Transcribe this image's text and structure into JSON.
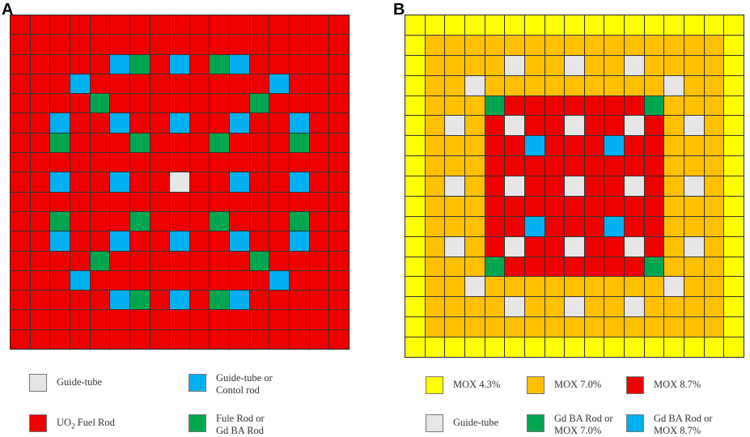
{
  "colors": {
    "red": "#ee0000",
    "blue": "#00b0f0",
    "green": "#00a550",
    "white": "#e6e6e6",
    "yellow": "#ffff00",
    "orange": "#ffc000"
  },
  "panels": [
    {
      "label": "A",
      "size": 17,
      "fill": "red",
      "cells": [
        {
          "r": 2,
          "c": 5,
          "t": "blue"
        },
        {
          "r": 2,
          "c": 6,
          "t": "green"
        },
        {
          "r": 2,
          "c": 8,
          "t": "blue"
        },
        {
          "r": 2,
          "c": 10,
          "t": "green"
        },
        {
          "r": 2,
          "c": 11,
          "t": "blue"
        },
        {
          "r": 3,
          "c": 3,
          "t": "blue"
        },
        {
          "r": 3,
          "c": 13,
          "t": "blue"
        },
        {
          "r": 4,
          "c": 4,
          "t": "green"
        },
        {
          "r": 4,
          "c": 12,
          "t": "green"
        },
        {
          "r": 5,
          "c": 2,
          "t": "blue"
        },
        {
          "r": 5,
          "c": 5,
          "t": "blue"
        },
        {
          "r": 5,
          "c": 8,
          "t": "blue"
        },
        {
          "r": 5,
          "c": 11,
          "t": "blue"
        },
        {
          "r": 5,
          "c": 14,
          "t": "blue"
        },
        {
          "r": 6,
          "c": 2,
          "t": "green"
        },
        {
          "r": 6,
          "c": 6,
          "t": "green"
        },
        {
          "r": 6,
          "c": 10,
          "t": "green"
        },
        {
          "r": 6,
          "c": 14,
          "t": "green"
        },
        {
          "r": 8,
          "c": 2,
          "t": "blue"
        },
        {
          "r": 8,
          "c": 5,
          "t": "blue"
        },
        {
          "r": 8,
          "c": 8,
          "t": "white"
        },
        {
          "r": 8,
          "c": 11,
          "t": "blue"
        },
        {
          "r": 8,
          "c": 14,
          "t": "blue"
        },
        {
          "r": 10,
          "c": 2,
          "t": "green"
        },
        {
          "r": 10,
          "c": 6,
          "t": "green"
        },
        {
          "r": 10,
          "c": 10,
          "t": "green"
        },
        {
          "r": 10,
          "c": 14,
          "t": "green"
        },
        {
          "r": 11,
          "c": 2,
          "t": "blue"
        },
        {
          "r": 11,
          "c": 5,
          "t": "blue"
        },
        {
          "r": 11,
          "c": 8,
          "t": "blue"
        },
        {
          "r": 11,
          "c": 11,
          "t": "blue"
        },
        {
          "r": 11,
          "c": 14,
          "t": "blue"
        },
        {
          "r": 12,
          "c": 4,
          "t": "green"
        },
        {
          "r": 12,
          "c": 12,
          "t": "green"
        },
        {
          "r": 13,
          "c": 3,
          "t": "blue"
        },
        {
          "r": 13,
          "c": 13,
          "t": "blue"
        },
        {
          "r": 14,
          "c": 5,
          "t": "blue"
        },
        {
          "r": 14,
          "c": 6,
          "t": "green"
        },
        {
          "r": 14,
          "c": 8,
          "t": "blue"
        },
        {
          "r": 14,
          "c": 10,
          "t": "green"
        },
        {
          "r": 14,
          "c": 11,
          "t": "blue"
        }
      ]
    },
    {
      "label": "B",
      "size": 17,
      "zones": [
        {
          "from": 0,
          "to": 16,
          "t": "yellow"
        },
        {
          "from": 1,
          "to": 15,
          "t": "orange"
        },
        {
          "from": 4,
          "to": 12,
          "t": "red"
        }
      ],
      "cells": [
        {
          "r": 2,
          "c": 5,
          "t": "white"
        },
        {
          "r": 2,
          "c": 8,
          "t": "white"
        },
        {
          "r": 2,
          "c": 11,
          "t": "white"
        },
        {
          "r": 3,
          "c": 3,
          "t": "white"
        },
        {
          "r": 3,
          "c": 13,
          "t": "white"
        },
        {
          "r": 4,
          "c": 4,
          "t": "green"
        },
        {
          "r": 4,
          "c": 12,
          "t": "green"
        },
        {
          "r": 5,
          "c": 2,
          "t": "white"
        },
        {
          "r": 5,
          "c": 5,
          "t": "white"
        },
        {
          "r": 5,
          "c": 8,
          "t": "white"
        },
        {
          "r": 5,
          "c": 11,
          "t": "white"
        },
        {
          "r": 5,
          "c": 14,
          "t": "white"
        },
        {
          "r": 6,
          "c": 6,
          "t": "blue"
        },
        {
          "r": 6,
          "c": 10,
          "t": "blue"
        },
        {
          "r": 8,
          "c": 2,
          "t": "white"
        },
        {
          "r": 8,
          "c": 5,
          "t": "white"
        },
        {
          "r": 8,
          "c": 8,
          "t": "white"
        },
        {
          "r": 8,
          "c": 11,
          "t": "white"
        },
        {
          "r": 8,
          "c": 14,
          "t": "white"
        },
        {
          "r": 10,
          "c": 6,
          "t": "blue"
        },
        {
          "r": 10,
          "c": 10,
          "t": "blue"
        },
        {
          "r": 11,
          "c": 2,
          "t": "white"
        },
        {
          "r": 11,
          "c": 5,
          "t": "white"
        },
        {
          "r": 11,
          "c": 8,
          "t": "white"
        },
        {
          "r": 11,
          "c": 11,
          "t": "white"
        },
        {
          "r": 11,
          "c": 14,
          "t": "white"
        },
        {
          "r": 12,
          "c": 4,
          "t": "green"
        },
        {
          "r": 12,
          "c": 12,
          "t": "green"
        },
        {
          "r": 13,
          "c": 3,
          "t": "white"
        },
        {
          "r": 13,
          "c": 13,
          "t": "white"
        },
        {
          "r": 14,
          "c": 5,
          "t": "white"
        },
        {
          "r": 14,
          "c": 8,
          "t": "white"
        },
        {
          "r": 14,
          "c": 11,
          "t": "white"
        }
      ]
    }
  ],
  "legend_a": [
    {
      "swatch": "white",
      "text": "Guide-tube"
    },
    {
      "swatch": "blue",
      "text": "Guide-tube or\nContol rod"
    },
    {
      "swatch": "red",
      "text_main": "UO",
      "text_sub": "2",
      "text_rest": " Fuel Rod"
    },
    {
      "swatch": "green",
      "text": "Fule Rod or\nGd BA Rod"
    }
  ],
  "legend_b": [
    {
      "swatch": "yellow",
      "text": "MOX 4.3%"
    },
    {
      "swatch": "orange",
      "text": "MOX 7.0%"
    },
    {
      "swatch": "red",
      "text": "MOX 8.7%"
    },
    {
      "swatch": "white",
      "text": "Guide-tube"
    },
    {
      "swatch": "green",
      "text": "Gd BA Rod or\nMOX 7.0%"
    },
    {
      "swatch": "blue",
      "text": "Gd BA Rod or\nMOX 8.7%"
    }
  ]
}
